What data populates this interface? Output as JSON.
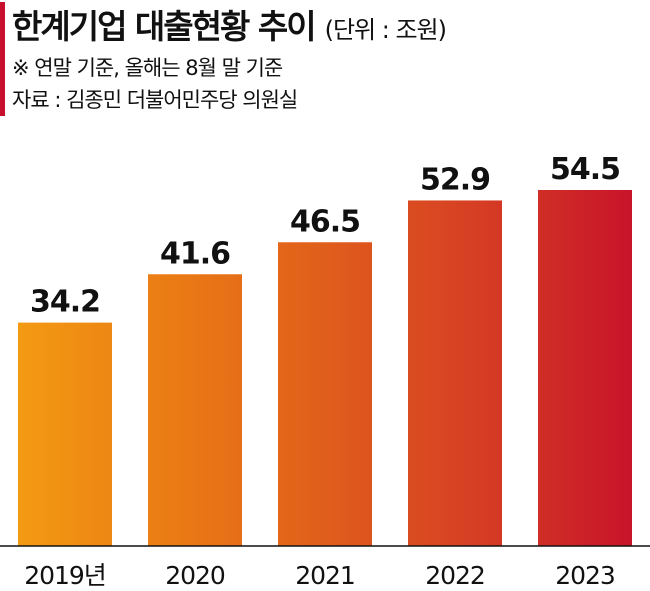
{
  "header": {
    "title": "한계기업 대출현황 추이",
    "unit": "(단위 : 조원)",
    "note": "※ 연말 기준, 올해는 8월 말 기준",
    "source": "자료 : 김종민 더불어민주당 의원실"
  },
  "colors": {
    "accent": "#c8102e",
    "bars": [
      "#f39a13",
      "#ea7b14",
      "#e05e1c",
      "#d63e24",
      "#c8142a"
    ]
  },
  "chart_data": {
    "type": "bar",
    "categories": [
      "2019년",
      "2020",
      "2021",
      "2022",
      "2023"
    ],
    "values": [
      34.2,
      41.6,
      46.5,
      52.9,
      54.5
    ],
    "value_labels": [
      "34.2",
      "41.6",
      "46.5",
      "52.9",
      "54.5"
    ],
    "title": "한계기업 대출현황 추이",
    "ylabel": "(단위 : 조원)",
    "ylim": [
      0,
      54.5
    ],
    "grid": false,
    "legend": "none"
  }
}
